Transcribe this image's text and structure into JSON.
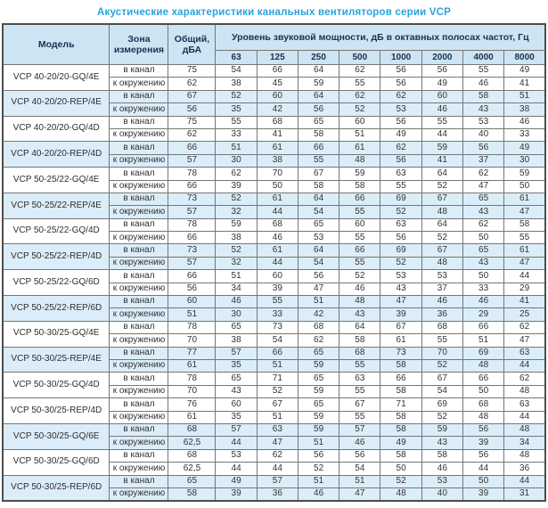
{
  "title": "Акустические характеристики канальных вентиляторов  серии VCP",
  "table": {
    "headers": {
      "model": "Модель",
      "zone": "Зона измерения",
      "total": "Общий, дБА",
      "bands_group": "Уровень звуковой мощности, дБ в октавных полосах частот, Гц",
      "frequencies": [
        "63",
        "125",
        "250",
        "500",
        "1000",
        "2000",
        "4000",
        "8000"
      ]
    },
    "zone_labels": [
      "в канал",
      "к окружению"
    ],
    "rows": [
      {
        "model": "VCP 40-20/20-GQ/4E",
        "shaded": false,
        "measurements": [
          {
            "zone": "в канал",
            "total": "75",
            "bands": [
              "54",
              "66",
              "64",
              "62",
              "56",
              "56",
              "55",
              "49"
            ]
          },
          {
            "zone": "к окружению",
            "total": "62",
            "bands": [
              "38",
              "45",
              "59",
              "55",
              "56",
              "49",
              "46",
              "41"
            ]
          }
        ]
      },
      {
        "model": "VCP 40-20/20-REP/4E",
        "shaded": true,
        "measurements": [
          {
            "zone": "в канал",
            "total": "67",
            "bands": [
              "52",
              "60",
              "64",
              "62",
              "62",
              "60",
              "58",
              "51"
            ]
          },
          {
            "zone": "к окружению",
            "total": "56",
            "bands": [
              "35",
              "42",
              "56",
              "52",
              "53",
              "46",
              "43",
              "38"
            ]
          }
        ]
      },
      {
        "model": "VCP 40-20/20-GQ/4D",
        "shaded": false,
        "measurements": [
          {
            "zone": "в канал",
            "total": "75",
            "bands": [
              "55",
              "68",
              "65",
              "60",
              "56",
              "55",
              "53",
              "46"
            ]
          },
          {
            "zone": "к окружению",
            "total": "62",
            "bands": [
              "33",
              "41",
              "58",
              "51",
              "49",
              "44",
              "40",
              "33"
            ]
          }
        ]
      },
      {
        "model": "VCP 40-20/20-REP/4D",
        "shaded": true,
        "measurements": [
          {
            "zone": "в канал",
            "total": "66",
            "bands": [
              "51",
              "61",
              "66",
              "61",
              "62",
              "59",
              "56",
              "49"
            ]
          },
          {
            "zone": "к окружению",
            "total": "57",
            "bands": [
              "30",
              "38",
              "55",
              "48",
              "56",
              "41",
              "37",
              "30"
            ]
          }
        ]
      },
      {
        "model": "VCP 50-25/22-GQ/4E",
        "shaded": false,
        "measurements": [
          {
            "zone": "в канал",
            "total": "78",
            "bands": [
              "62",
              "70",
              "67",
              "59",
              "63",
              "64",
              "62",
              "59"
            ]
          },
          {
            "zone": "к окружению",
            "total": "66",
            "bands": [
              "39",
              "50",
              "58",
              "58",
              "55",
              "52",
              "47",
              "50"
            ]
          }
        ]
      },
      {
        "model": "VCP 50-25/22-REP/4E",
        "shaded": true,
        "measurements": [
          {
            "zone": "в канал",
            "total": "73",
            "bands": [
              "52",
              "61",
              "64",
              "66",
              "69",
              "67",
              "65",
              "61"
            ]
          },
          {
            "zone": "к окружению",
            "total": "57",
            "bands": [
              "32",
              "44",
              "54",
              "55",
              "52",
              "48",
              "43",
              "47"
            ]
          }
        ]
      },
      {
        "model": "VCP 50-25/22-GQ/4D",
        "shaded": false,
        "measurements": [
          {
            "zone": "в канал",
            "total": "78",
            "bands": [
              "59",
              "68",
              "65",
              "60",
              "63",
              "64",
              "62",
              "58"
            ]
          },
          {
            "zone": "к окружению",
            "total": "66",
            "bands": [
              "38",
              "46",
              "53",
              "55",
              "56",
              "52",
              "50",
              "55"
            ]
          }
        ]
      },
      {
        "model": "VCP 50-25/22-REP/4D",
        "shaded": true,
        "measurements": [
          {
            "zone": "в канал",
            "total": "73",
            "bands": [
              "52",
              "61",
              "64",
              "66",
              "69",
              "67",
              "65",
              "61"
            ]
          },
          {
            "zone": "к окружению",
            "total": "57",
            "bands": [
              "32",
              "44",
              "54",
              "55",
              "52",
              "48",
              "43",
              "47"
            ]
          }
        ]
      },
      {
        "model": "VCP 50-25/22-GQ/6D",
        "shaded": false,
        "measurements": [
          {
            "zone": "в канал",
            "total": "66",
            "bands": [
              "51",
              "60",
              "56",
              "52",
              "53",
              "53",
              "50",
              "44"
            ]
          },
          {
            "zone": "к окружению",
            "total": "56",
            "bands": [
              "34",
              "39",
              "47",
              "46",
              "43",
              "37",
              "33",
              "29"
            ]
          }
        ]
      },
      {
        "model": "VCP 50-25/22-REP/6D",
        "shaded": true,
        "measurements": [
          {
            "zone": "в канал",
            "total": "60",
            "bands": [
              "46",
              "55",
              "51",
              "48",
              "47",
              "46",
              "46",
              "41"
            ]
          },
          {
            "zone": "к окружению",
            "total": "51",
            "bands": [
              "30",
              "33",
              "42",
              "43",
              "39",
              "36",
              "29",
              "25"
            ]
          }
        ]
      },
      {
        "model": "VCP 50-30/25-GQ/4E",
        "shaded": false,
        "measurements": [
          {
            "zone": "в канал",
            "total": "78",
            "bands": [
              "65",
              "73",
              "68",
              "64",
              "67",
              "68",
              "66",
              "62"
            ]
          },
          {
            "zone": "к окружению",
            "total": "70",
            "bands": [
              "38",
              "54",
              "62",
              "58",
              "61",
              "55",
              "51",
              "47"
            ]
          }
        ]
      },
      {
        "model": "VCP 50-30/25-REP/4E",
        "shaded": true,
        "measurements": [
          {
            "zone": "в канал",
            "total": "77",
            "bands": [
              "57",
              "66",
              "65",
              "68",
              "73",
              "70",
              "69",
              "63"
            ]
          },
          {
            "zone": "к окружению",
            "total": "61",
            "bands": [
              "35",
              "51",
              "59",
              "55",
              "58",
              "52",
              "48",
              "44"
            ]
          }
        ]
      },
      {
        "model": "VCP 50-30/25-GQ/4D",
        "shaded": false,
        "measurements": [
          {
            "zone": "в канал",
            "total": "78",
            "bands": [
              "65",
              "71",
              "65",
              "63",
              "66",
              "67",
              "66",
              "62"
            ]
          },
          {
            "zone": "к окружению",
            "total": "70",
            "bands": [
              "43",
              "52",
              "59",
              "55",
              "58",
              "54",
              "50",
              "48"
            ]
          }
        ]
      },
      {
        "model": "VCP 50-30/25-REP/4D",
        "shaded": false,
        "measurements": [
          {
            "zone": "в канал",
            "total": "76",
            "bands": [
              "60",
              "67",
              "65",
              "67",
              "71",
              "69",
              "68",
              "63"
            ]
          },
          {
            "zone": "к окружению",
            "total": "61",
            "bands": [
              "35",
              "51",
              "59",
              "55",
              "58",
              "52",
              "48",
              "44"
            ]
          }
        ]
      },
      {
        "model": "VCP 50-30/25-GQ/6E",
        "shaded": true,
        "measurements": [
          {
            "zone": "в канал",
            "total": "68",
            "bands": [
              "57",
              "63",
              "59",
              "57",
              "58",
              "59",
              "56",
              "48"
            ]
          },
          {
            "zone": "к окружению",
            "total": "62,5",
            "bands": [
              "44",
              "47",
              "51",
              "46",
              "49",
              "43",
              "39",
              "34"
            ]
          }
        ]
      },
      {
        "model": "VCP 50-30/25-GQ/6D",
        "shaded": false,
        "measurements": [
          {
            "zone": "в канал",
            "total": "68",
            "bands": [
              "53",
              "62",
              "56",
              "56",
              "58",
              "58",
              "56",
              "48"
            ]
          },
          {
            "zone": "к окружению",
            "total": "62,5",
            "bands": [
              "44",
              "44",
              "52",
              "54",
              "50",
              "46",
              "44",
              "36"
            ]
          }
        ]
      },
      {
        "model": "VCP 50-30/25-REP/6D",
        "shaded": true,
        "measurements": [
          {
            "zone": "в канал",
            "total": "65",
            "bands": [
              "49",
              "57",
              "51",
              "51",
              "52",
              "53",
              "50",
              "44"
            ]
          },
          {
            "zone": "к окружению",
            "total": "58",
            "bands": [
              "39",
              "36",
              "46",
              "47",
              "48",
              "40",
              "39",
              "31"
            ]
          }
        ]
      }
    ]
  },
  "colors": {
    "title": "#29a3dd",
    "header_bg": "#cde5f3",
    "shaded_row_bg": "#dbedf9",
    "border": "#767676",
    "header_text": "#1b3050",
    "cell_text": "#333333"
  }
}
